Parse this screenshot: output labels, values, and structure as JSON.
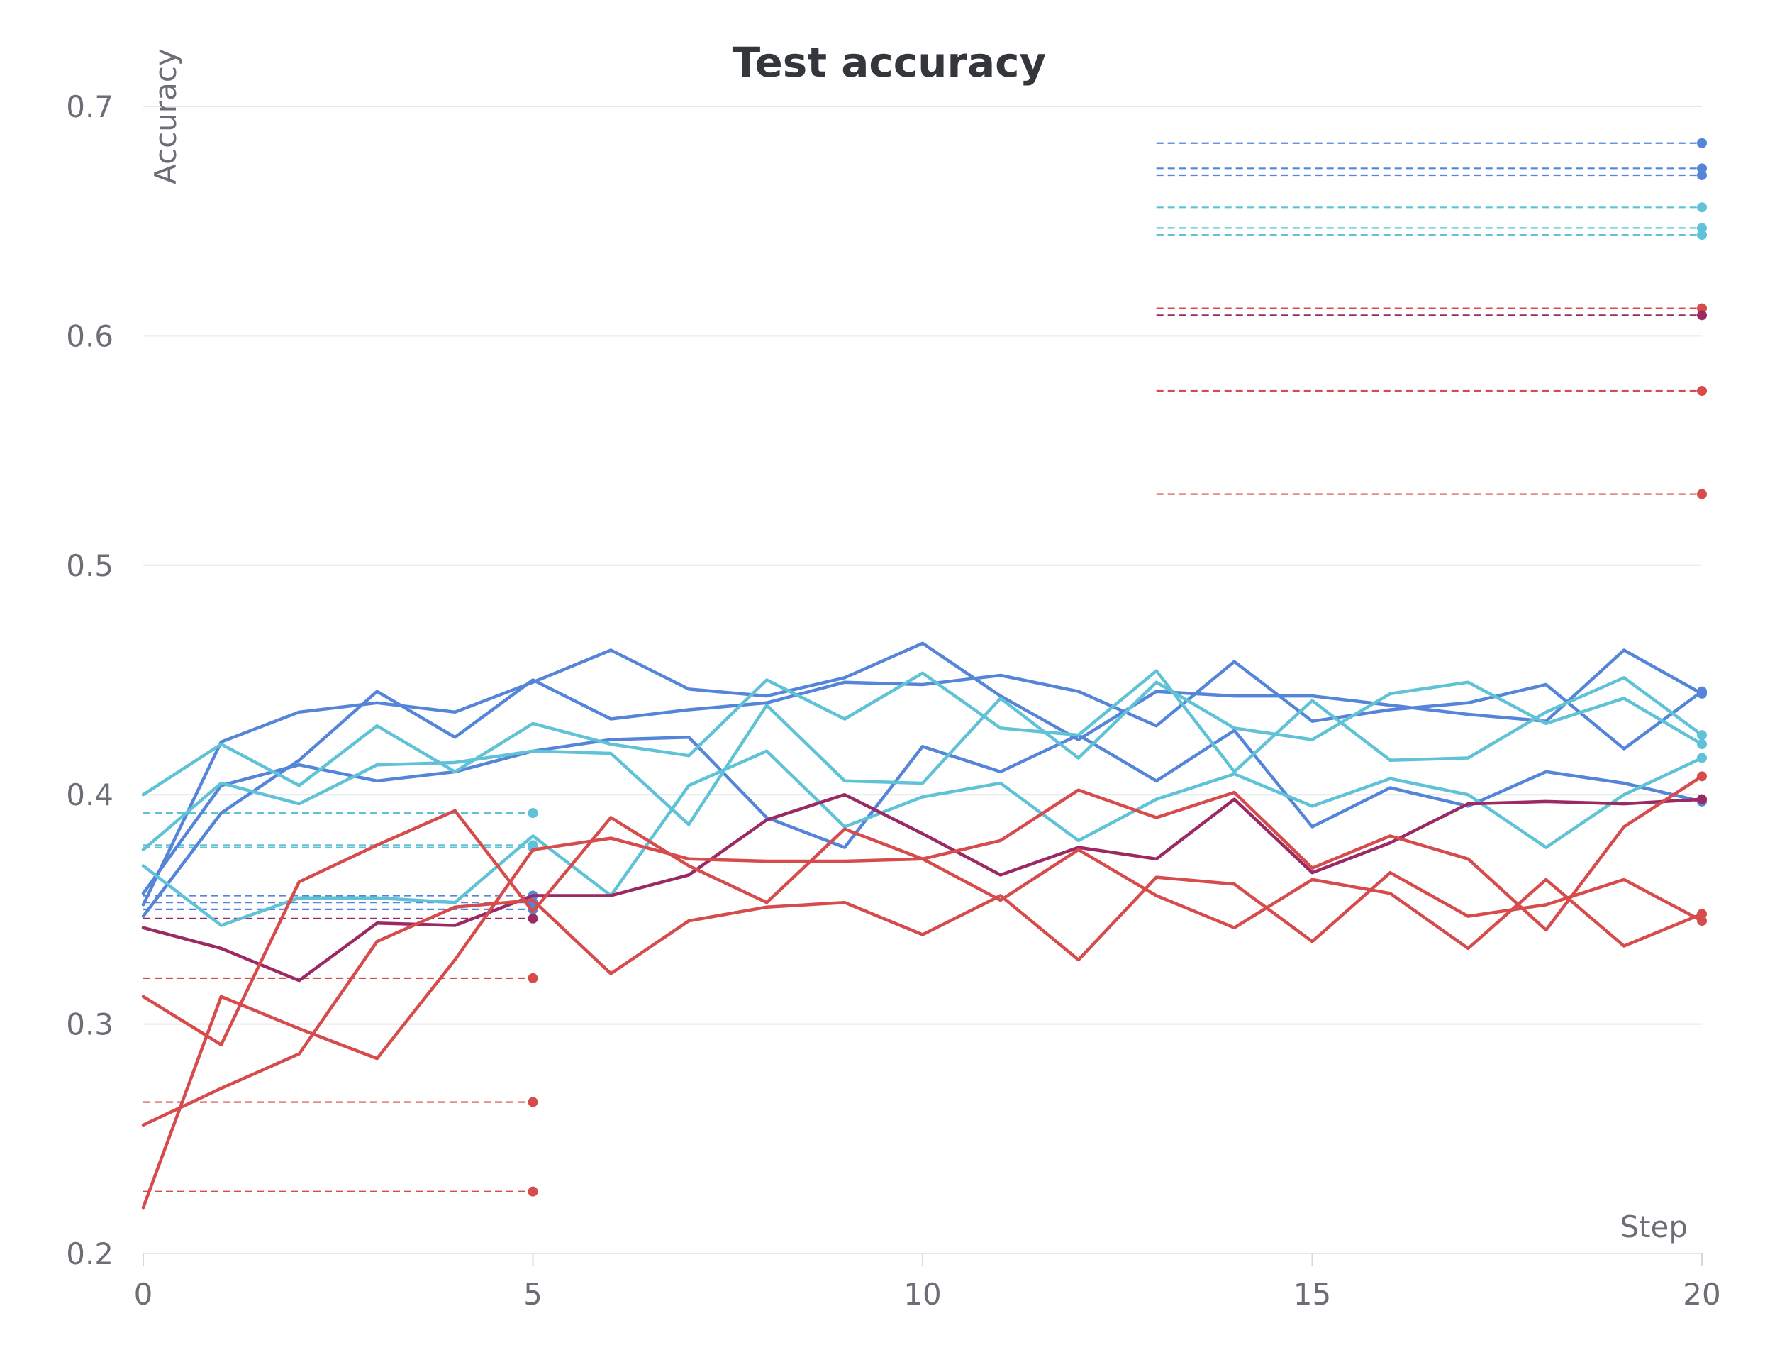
{
  "chart_data": {
    "type": "line",
    "title": "Test accuracy",
    "xlabel": "Step",
    "ylabel": "Accuracy",
    "xlim": [
      0,
      20
    ],
    "ylim": [
      0.2,
      0.7
    ],
    "xticks": [
      0,
      5,
      10,
      15,
      20
    ],
    "yticks": [
      0.2,
      0.3,
      0.4,
      0.5,
      0.6,
      0.7
    ],
    "grid": "horizontal",
    "legend": "none",
    "x": [
      0,
      1,
      2,
      3,
      4,
      5,
      6,
      7,
      8,
      9,
      10,
      11,
      12,
      13,
      14,
      15,
      16,
      17,
      18,
      19,
      20
    ],
    "series": [
      {
        "color": "#5585d9",
        "values": [
          0.352,
          0.423,
          0.436,
          0.44,
          0.436,
          0.449,
          0.463,
          0.446,
          0.443,
          0.451,
          0.466,
          0.443,
          0.424,
          0.445,
          0.443,
          0.443,
          0.439,
          0.435,
          0.432,
          0.463,
          0.444
        ]
      },
      {
        "color": "#5585d9",
        "values": [
          0.347,
          0.392,
          0.415,
          0.445,
          0.425,
          0.45,
          0.433,
          0.437,
          0.44,
          0.449,
          0.448,
          0.452,
          0.445,
          0.43,
          0.458,
          0.432,
          0.437,
          0.44,
          0.448,
          0.42,
          0.445
        ]
      },
      {
        "color": "#5585d9",
        "values": [
          0.357,
          0.404,
          0.413,
          0.406,
          0.41,
          0.419,
          0.424,
          0.425,
          0.39,
          0.377,
          0.421,
          0.41,
          0.426,
          0.406,
          0.428,
          0.386,
          0.403,
          0.395,
          0.41,
          0.405,
          0.397
        ]
      },
      {
        "color": "#5fc2d6",
        "values": [
          0.4,
          0.422,
          0.404,
          0.43,
          0.41,
          0.431,
          0.422,
          0.417,
          0.45,
          0.433,
          0.453,
          0.429,
          0.426,
          0.454,
          0.41,
          0.441,
          0.415,
          0.416,
          0.436,
          0.451,
          0.426
        ]
      },
      {
        "color": "#5fc2d6",
        "values": [
          0.376,
          0.405,
          0.396,
          0.413,
          0.414,
          0.419,
          0.418,
          0.387,
          0.439,
          0.406,
          0.405,
          0.442,
          0.416,
          0.449,
          0.429,
          0.424,
          0.444,
          0.449,
          0.431,
          0.442,
          0.422
        ]
      },
      {
        "color": "#5fc2d6",
        "values": [
          0.369,
          0.343,
          0.355,
          0.355,
          0.353,
          0.382,
          0.356,
          0.404,
          0.419,
          0.386,
          0.399,
          0.405,
          0.38,
          0.398,
          0.409,
          0.395,
          0.407,
          0.4,
          0.377,
          0.4,
          0.416
        ]
      },
      {
        "color": "#9b2a64",
        "values": [
          0.342,
          0.333,
          0.319,
          0.344,
          0.343,
          0.356,
          0.356,
          0.365,
          0.389,
          0.4,
          0.383,
          0.365,
          0.377,
          0.372,
          0.398,
          0.366,
          0.379,
          0.396,
          0.397,
          0.396,
          0.398
        ]
      },
      {
        "color": "#d64b4b",
        "values": [
          0.22,
          0.312,
          0.298,
          0.285,
          0.328,
          0.376,
          0.381,
          0.372,
          0.371,
          0.371,
          0.372,
          0.38,
          0.402,
          0.39,
          0.401,
          0.368,
          0.382,
          0.372,
          0.341,
          0.386,
          0.408
        ]
      },
      {
        "color": "#d64b4b",
        "values": [
          0.312,
          0.291,
          0.362,
          0.378,
          0.393,
          0.349,
          0.39,
          0.369,
          0.353,
          0.385,
          0.372,
          0.354,
          0.376,
          0.356,
          0.342,
          0.363,
          0.357,
          0.333,
          0.363,
          0.334,
          0.348
        ]
      },
      {
        "color": "#d64b4b",
        "values": [
          0.256,
          0.272,
          0.287,
          0.336,
          0.351,
          0.354,
          0.322,
          0.345,
          0.351,
          0.353,
          0.339,
          0.356,
          0.328,
          0.364,
          0.361,
          0.336,
          0.366,
          0.347,
          0.352,
          0.363,
          0.345
        ]
      }
    ],
    "reference_lines": [
      {
        "color": "#5585d9",
        "x": [
          13,
          20
        ],
        "y": 0.684
      },
      {
        "color": "#5585d9",
        "x": [
          13,
          20
        ],
        "y": 0.673
      },
      {
        "color": "#5585d9",
        "x": [
          13,
          20
        ],
        "y": 0.67
      },
      {
        "color": "#5fc2d6",
        "x": [
          13,
          20
        ],
        "y": 0.656
      },
      {
        "color": "#5fc2d6",
        "x": [
          13,
          20
        ],
        "y": 0.647
      },
      {
        "color": "#5fc2d6",
        "x": [
          13,
          20
        ],
        "y": 0.644
      },
      {
        "color": "#d64b4b",
        "x": [
          13,
          20
        ],
        "y": 0.612
      },
      {
        "color": "#9b2a64",
        "x": [
          13,
          20
        ],
        "y": 0.609
      },
      {
        "color": "#d64b4b",
        "x": [
          13,
          20
        ],
        "y": 0.576
      },
      {
        "color": "#d64b4b",
        "x": [
          13,
          20
        ],
        "y": 0.531
      },
      {
        "color": "#5fc2d6",
        "x": [
          0,
          5
        ],
        "y": 0.392
      },
      {
        "color": "#5fc2d6",
        "x": [
          0,
          5
        ],
        "y": 0.378
      },
      {
        "color": "#5fc2d6",
        "x": [
          0,
          5
        ],
        "y": 0.377
      },
      {
        "color": "#5585d9",
        "x": [
          0,
          5
        ],
        "y": 0.356
      },
      {
        "color": "#5585d9",
        "x": [
          0,
          5
        ],
        "y": 0.353
      },
      {
        "color": "#5585d9",
        "x": [
          0,
          5
        ],
        "y": 0.35
      },
      {
        "color": "#9b2a64",
        "x": [
          0,
          5
        ],
        "y": 0.346
      },
      {
        "color": "#d64b4b",
        "x": [
          0,
          5
        ],
        "y": 0.32
      },
      {
        "color": "#d64b4b",
        "x": [
          0,
          5
        ],
        "y": 0.266
      },
      {
        "color": "#d64b4b",
        "x": [
          0,
          5
        ],
        "y": 0.227
      }
    ]
  }
}
